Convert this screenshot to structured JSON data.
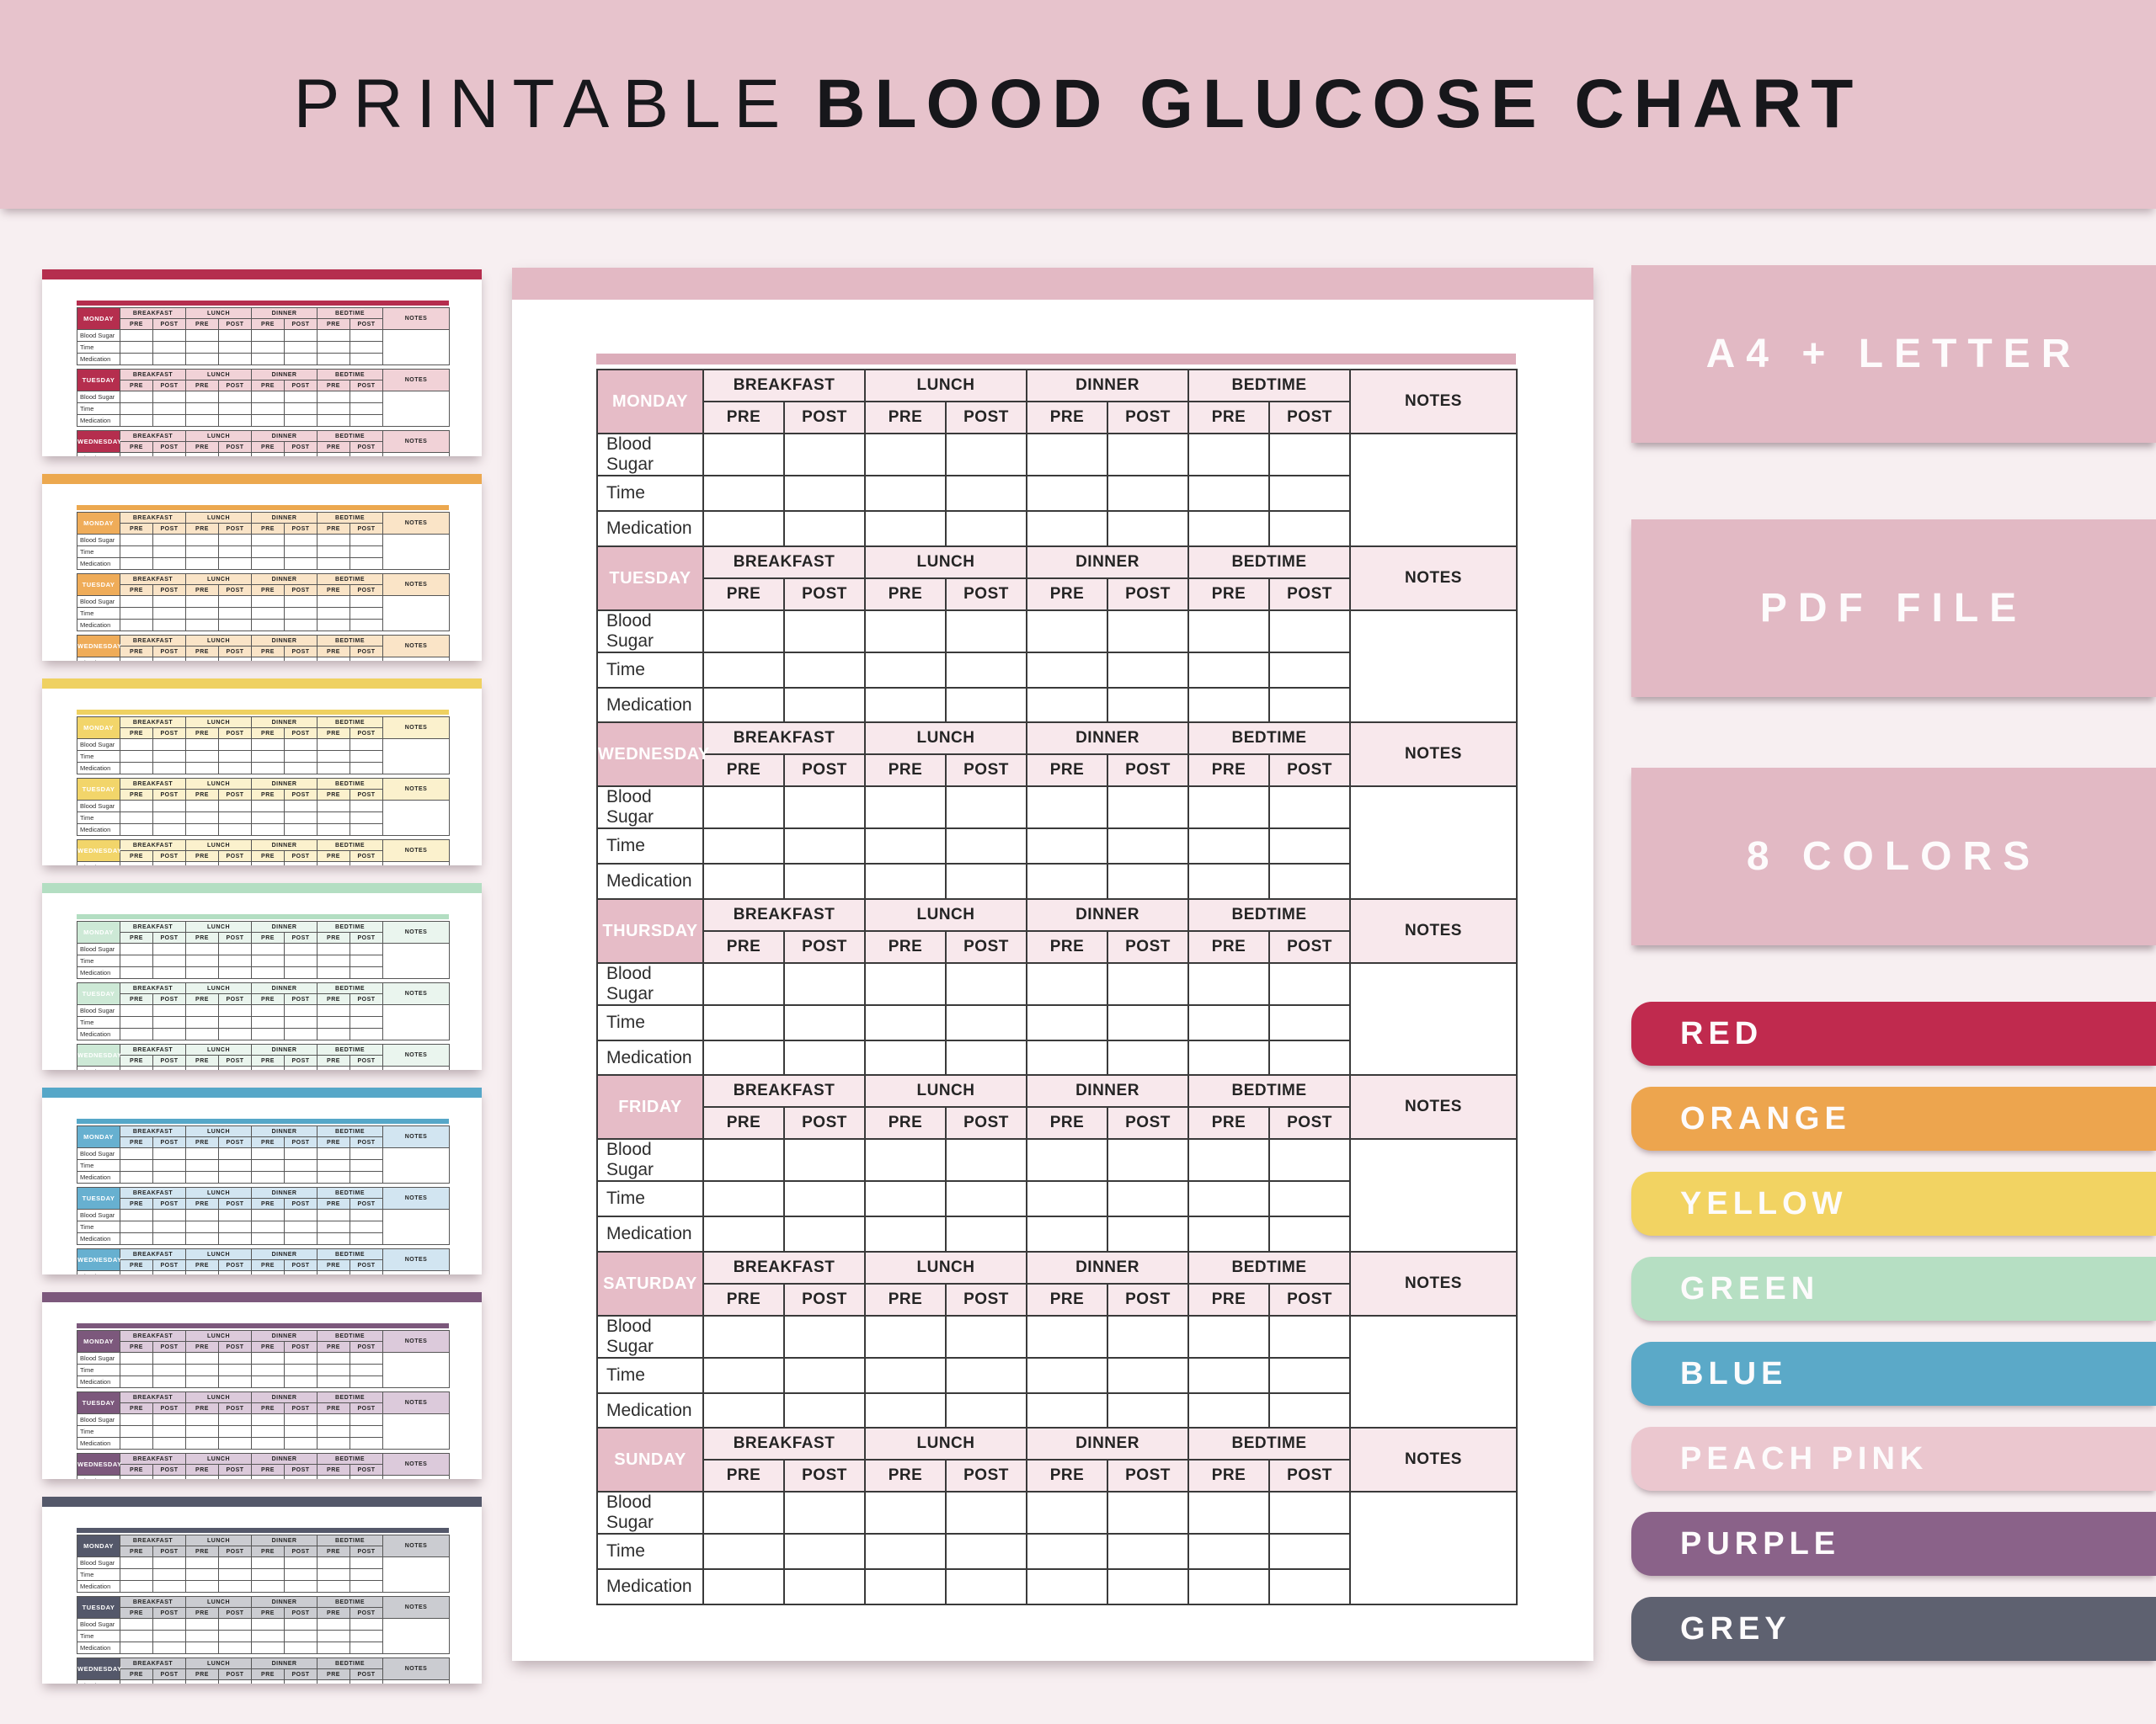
{
  "background_color": "#f7eff1",
  "banner": {
    "title_light": "PRINTABLE",
    "title_bold": "BLOOD GLUCOSE CHART",
    "bg": "#e7c3cc",
    "text_color": "#17171b"
  },
  "chart_table": {
    "meal_headers": [
      "BREAKFAST",
      "LUNCH",
      "DINNER",
      "BEDTIME"
    ],
    "sub_headers": [
      "PRE",
      "POST"
    ],
    "notes_header": "NOTES",
    "row_labels": [
      "Blood Sugar",
      "Time",
      "Medication"
    ],
    "days": [
      "MONDAY",
      "TUESDAY",
      "WEDNESDAY",
      "THURSDAY",
      "FRIDAY",
      "SATURDAY",
      "SUNDAY"
    ]
  },
  "center_preview": {
    "variant": "peach-pink",
    "bar": "#e3b9c4",
    "accent": "#dcadba",
    "day_cell": "#e6bcc7",
    "header_cell": "#f8e8ec",
    "days_shown": [
      "MONDAY",
      "TUESDAY",
      "WEDNESDAY",
      "THURSDAY",
      "FRIDAY",
      "SATURDAY",
      "SUNDAY"
    ]
  },
  "thumbnails": [
    {
      "variant": "red",
      "bar": "#b52e4e",
      "accent": "#b52e4e",
      "day_cell": "#b52e4e",
      "header_cell": "#f1d2d7"
    },
    {
      "variant": "orange",
      "bar": "#eca84f",
      "accent": "#eca84f",
      "day_cell": "#efac59",
      "header_cell": "#fae4c7"
    },
    {
      "variant": "yellow",
      "bar": "#efd161",
      "accent": "#efd161",
      "day_cell": "#f2d56a",
      "header_cell": "#fbf1cd"
    },
    {
      "variant": "green",
      "bar": "#b3dec2",
      "accent": "#b3dec2",
      "day_cell": "#cde9d6",
      "header_cell": "#eaf5ee"
    },
    {
      "variant": "blue",
      "bar": "#56a7c8",
      "accent": "#56a7c8",
      "day_cell": "#67b0d0",
      "header_cell": "#d2e5f1"
    },
    {
      "variant": "purple",
      "bar": "#7c587c",
      "accent": "#7c587c",
      "day_cell": "#7c587c",
      "header_cell": "#dccadb"
    },
    {
      "variant": "grey",
      "bar": "#54586a",
      "accent": "#54586a",
      "day_cell": "#54586a",
      "header_cell": "#cbccd1"
    }
  ],
  "thumbnail_days_shown": [
    "MONDAY",
    "TUESDAY",
    "WEDNESDAY"
  ],
  "badges": {
    "bg": "#e2b9c4",
    "items": [
      {
        "label": "A4 + LETTER"
      },
      {
        "label": "PDF FILE"
      },
      {
        "label": "8 COLORS"
      }
    ]
  },
  "color_pills": [
    {
      "label": "RED",
      "color": "#c02a4e"
    },
    {
      "label": "ORANGE",
      "color": "#eda54e"
    },
    {
      "label": "YELLOW",
      "color": "#f2d362"
    },
    {
      "label": "GREEN",
      "color": "#b6dfc3"
    },
    {
      "label": "BLUE",
      "color": "#5ba9c8"
    },
    {
      "label": "PEACH PINK",
      "color": "#ebc7cf"
    },
    {
      "label": "PURPLE",
      "color": "#8a6289"
    },
    {
      "label": "GREY",
      "color": "#5e6170"
    }
  ]
}
